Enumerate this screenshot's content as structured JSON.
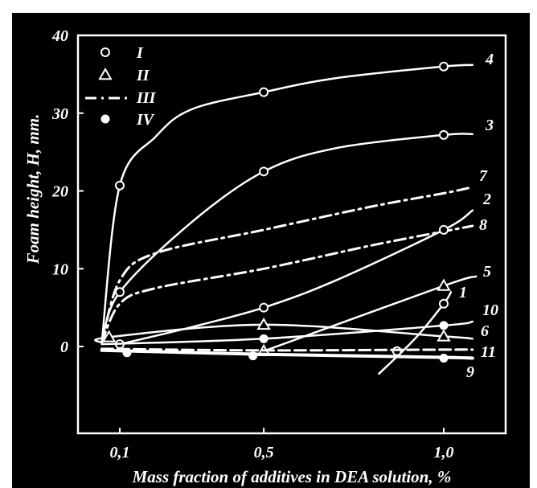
{
  "chart_data": {
    "type": "line",
    "xlabel": "Mass fraction of additives in DEA solution, %",
    "ylabel": "Foam height,  H, mm.",
    "x_ticks": [
      "0,1",
      "0,5",
      "1,0"
    ],
    "y_ticks": [
      "0",
      "10",
      "20",
      "30",
      "40"
    ],
    "ylim": [
      -10,
      40
    ],
    "grid": false,
    "legend_position": "top-left",
    "legend": [
      {
        "label": "I",
        "marker": "circle-open"
      },
      {
        "label": "II",
        "marker": "triangle-open"
      },
      {
        "label": "III",
        "marker": "dash-dot-line"
      },
      {
        "label": "IV",
        "marker": "circle-filled"
      }
    ],
    "series": [
      {
        "name": "4",
        "style": "solid",
        "marker": "circle-open",
        "marker_x": [
          0.1,
          0.5,
          1.0
        ],
        "marker_y": [
          20.7,
          32.7,
          36.0
        ],
        "x": [
          0.05,
          0.1,
          0.2,
          0.3,
          0.5,
          0.7,
          1.0,
          1.08
        ],
        "y": [
          0.5,
          20.7,
          27.0,
          30.5,
          32.7,
          34.5,
          36.0,
          36.2
        ]
      },
      {
        "name": "3",
        "style": "solid",
        "marker": "circle-open",
        "marker_x": [
          0.1,
          0.5,
          1.0
        ],
        "marker_y": [
          7.0,
          22.5,
          27.2
        ],
        "x": [
          0.05,
          0.1,
          0.3,
          0.5,
          0.7,
          1.0,
          1.08
        ],
        "y": [
          0.5,
          7.0,
          16.0,
          22.5,
          25.5,
          27.2,
          27.3
        ]
      },
      {
        "name": "7",
        "style": "dashdot",
        "x": [
          0.05,
          0.1,
          0.2,
          0.5,
          0.8,
          1.0,
          1.08
        ],
        "y": [
          0.5,
          8.5,
          12.0,
          15.0,
          18.0,
          19.7,
          20.5
        ]
      },
      {
        "name": "8",
        "style": "dashdot",
        "x": [
          0.05,
          0.1,
          0.2,
          0.5,
          0.8,
          1.0,
          1.08
        ],
        "y": [
          0.5,
          5.5,
          7.5,
          10.0,
          13.0,
          14.8,
          15.5
        ]
      },
      {
        "name": "2",
        "style": "solid",
        "marker": "circle-open",
        "marker_x": [
          0.1,
          0.5,
          1.0
        ],
        "marker_y": [
          0.3,
          5.0,
          15.0
        ],
        "x": [
          0.1,
          0.3,
          0.5,
          0.7,
          1.0,
          1.08
        ],
        "y": [
          0.3,
          2.5,
          5.0,
          8.5,
          15.0,
          17.5
        ]
      },
      {
        "name": "5",
        "style": "solid",
        "marker": "triangle-open",
        "marker_x": [
          0.5,
          1.0
        ],
        "marker_y": [
          -0.6,
          7.8
        ],
        "x": [
          0.5,
          1.0,
          1.09
        ],
        "y": [
          -0.6,
          7.8,
          9.0
        ]
      },
      {
        "name": "1",
        "style": "solid",
        "marker": "circle-open",
        "marker_x": [
          0.87,
          1.0
        ],
        "marker_y": [
          -0.6,
          5.5
        ],
        "x": [
          0.82,
          0.92,
          1.0,
          1.02
        ],
        "y": [
          -3.5,
          1.0,
          5.5,
          7.0
        ]
      },
      {
        "name": "10",
        "style": "solid",
        "marker": "circle-filled",
        "marker_x": [
          0.5,
          1.0
        ],
        "marker_y": [
          1.0,
          2.7
        ],
        "x": [
          0.05,
          0.5,
          1.0,
          1.08
        ],
        "y": [
          0.3,
          1.0,
          2.7,
          3.2
        ]
      },
      {
        "name": "6",
        "style": "solid",
        "marker": "triangle-open",
        "marker_x": [
          0.07,
          0.5,
          1.0
        ],
        "marker_y": [
          1.2,
          2.8,
          1.3
        ],
        "x": [
          0.05,
          0.07,
          0.5,
          1.0,
          1.08
        ],
        "y": [
          0.5,
          1.2,
          2.8,
          1.3,
          1.0
        ]
      },
      {
        "name": "11",
        "style": "dashed",
        "x": [
          0.05,
          0.5,
          1.0,
          1.08
        ],
        "y": [
          -0.3,
          -0.5,
          -0.4,
          -0.4
        ]
      },
      {
        "name": "9",
        "style": "solid-thick",
        "marker": "circle-filled",
        "marker_x": [
          0.12,
          0.47,
          1.0
        ],
        "marker_y": [
          -0.8,
          -1.2,
          -1.5
        ],
        "x": [
          0.05,
          0.5,
          1.0,
          1.08
        ],
        "y": [
          -0.5,
          -1.0,
          -1.4,
          -1.5
        ]
      }
    ]
  }
}
